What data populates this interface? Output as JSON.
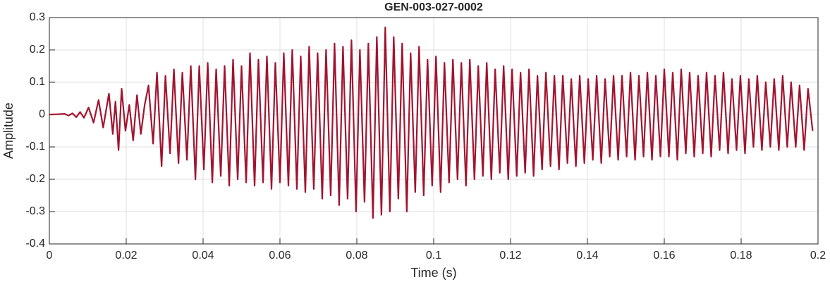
{
  "chart_data": {
    "type": "line",
    "title": "GEN-003-027-0002",
    "xlabel": "Time (s)",
    "ylabel": "Amplitude",
    "xlim": [
      0,
      0.2
    ],
    "ylim": [
      -0.4,
      0.3
    ],
    "xticks": [
      0,
      0.02,
      0.04,
      0.06,
      0.08,
      0.1,
      0.12,
      0.14,
      0.16,
      0.18,
      0.2
    ],
    "yticks": [
      -0.4,
      -0.3,
      -0.2,
      -0.1,
      0,
      0.1,
      0.2,
      0.3
    ],
    "grid": true,
    "series": [
      {
        "color": "#a2142f",
        "x": [
          0,
          0.002,
          0.004,
          0.005,
          0.006,
          0.007,
          0.008,
          0.009,
          0.0102,
          0.0115,
          0.0128,
          0.014,
          0.0155,
          0.0165,
          0.0172,
          0.018,
          0.0188,
          0.0198,
          0.0208,
          0.0218,
          0.0228,
          0.0238,
          0.0248,
          0.0258,
          0.027,
          0.028,
          0.0292,
          0.0302,
          0.0314,
          0.0324,
          0.0336,
          0.0346,
          0.0358,
          0.0368,
          0.038,
          0.039,
          0.0402,
          0.0412,
          0.0424,
          0.0434,
          0.0446,
          0.0456,
          0.0468,
          0.0478,
          0.049,
          0.05,
          0.0512,
          0.0522,
          0.0534,
          0.0544,
          0.0556,
          0.0566,
          0.0578,
          0.0588,
          0.06,
          0.061,
          0.0622,
          0.0632,
          0.0644,
          0.0654,
          0.0666,
          0.0676,
          0.0688,
          0.0698,
          0.071,
          0.072,
          0.0732,
          0.0742,
          0.0754,
          0.0764,
          0.0776,
          0.0786,
          0.0798,
          0.0808,
          0.082,
          0.083,
          0.0842,
          0.0852,
          0.0864,
          0.0874,
          0.0886,
          0.0896,
          0.0908,
          0.0918,
          0.093,
          0.094,
          0.0952,
          0.0962,
          0.0974,
          0.0984,
          0.0996,
          0.1006,
          0.1018,
          0.1028,
          0.104,
          0.105,
          0.1062,
          0.1072,
          0.1084,
          0.1094,
          0.1106,
          0.1116,
          0.1128,
          0.1138,
          0.115,
          0.116,
          0.1172,
          0.1182,
          0.1194,
          0.1204,
          0.1216,
          0.1226,
          0.1238,
          0.1248,
          0.126,
          0.127,
          0.1282,
          0.1292,
          0.1304,
          0.1314,
          0.1326,
          0.1336,
          0.1348,
          0.1358,
          0.137,
          0.138,
          0.1392,
          0.1402,
          0.1414,
          0.1424,
          0.1436,
          0.1446,
          0.1458,
          0.1468,
          0.148,
          0.149,
          0.1502,
          0.1512,
          0.1524,
          0.1534,
          0.1546,
          0.1556,
          0.1568,
          0.1578,
          0.159,
          0.16,
          0.1612,
          0.1622,
          0.1634,
          0.1644,
          0.1656,
          0.1666,
          0.1678,
          0.1688,
          0.17,
          0.171,
          0.1722,
          0.1732,
          0.1744,
          0.1754,
          0.1766,
          0.1776,
          0.1788,
          0.1798,
          0.181,
          0.182,
          0.1832,
          0.1842,
          0.1854,
          0.1864,
          0.1876,
          0.1886,
          0.1898,
          0.1908,
          0.192,
          0.193,
          0.1942,
          0.1952,
          0.1964,
          0.1974,
          0.1986
        ],
        "values": [
          0,
          0.001,
          0.002,
          -0.003,
          0.004,
          -0.008,
          0.008,
          -0.01,
          0.022,
          -0.025,
          0.045,
          -0.04,
          0.065,
          -0.06,
          0.04,
          -0.11,
          0.08,
          -0.05,
          0.03,
          -0.08,
          0.06,
          -0.06,
          0.03,
          0.09,
          -0.09,
          0.13,
          -0.16,
          0.12,
          -0.12,
          0.14,
          -0.15,
          0.13,
          -0.14,
          0.15,
          -0.2,
          0.15,
          -0.17,
          0.16,
          -0.21,
          0.14,
          -0.19,
          0.15,
          -0.22,
          0.17,
          -0.2,
          0.15,
          -0.21,
          0.19,
          -0.22,
          0.17,
          -0.21,
          0.18,
          -0.23,
          0.16,
          -0.21,
          0.19,
          -0.22,
          0.2,
          -0.23,
          0.18,
          -0.24,
          0.21,
          -0.23,
          0.19,
          -0.26,
          0.2,
          -0.25,
          0.22,
          -0.28,
          0.21,
          -0.26,
          0.23,
          -0.3,
          0.2,
          -0.27,
          0.22,
          -0.32,
          0.24,
          -0.31,
          0.27,
          -0.3,
          0.24,
          -0.26,
          0.22,
          -0.3,
          0.19,
          -0.24,
          0.21,
          -0.25,
          0.17,
          -0.22,
          0.18,
          -0.24,
          0.16,
          -0.21,
          0.17,
          -0.2,
          0.16,
          -0.22,
          0.17,
          -0.2,
          0.15,
          -0.19,
          0.16,
          -0.2,
          0.14,
          -0.18,
          0.15,
          -0.2,
          0.14,
          -0.19,
          0.13,
          -0.18,
          0.14,
          -0.19,
          0.12,
          -0.17,
          0.13,
          -0.16,
          0.12,
          -0.17,
          0.12,
          -0.15,
          0.11,
          -0.16,
          0.12,
          -0.15,
          0.11,
          -0.14,
          0.12,
          -0.15,
          0.11,
          -0.13,
          0.12,
          -0.14,
          0.12,
          -0.13,
          0.13,
          -0.14,
          0.12,
          -0.13,
          0.13,
          -0.14,
          0.12,
          -0.13,
          0.14,
          -0.13,
          0.13,
          -0.14,
          0.14,
          -0.12,
          0.13,
          -0.13,
          0.12,
          -0.12,
          0.13,
          -0.13,
          0.12,
          -0.11,
          0.13,
          -0.12,
          0.11,
          -0.11,
          0.12,
          -0.12,
          0.11,
          -0.1,
          0.12,
          -0.11,
          0.1,
          -0.1,
          0.11,
          -0.11,
          0.12,
          -0.1,
          0.1,
          -0.1,
          0.09,
          -0.11,
          0.08,
          -0.05
        ]
      }
    ]
  }
}
